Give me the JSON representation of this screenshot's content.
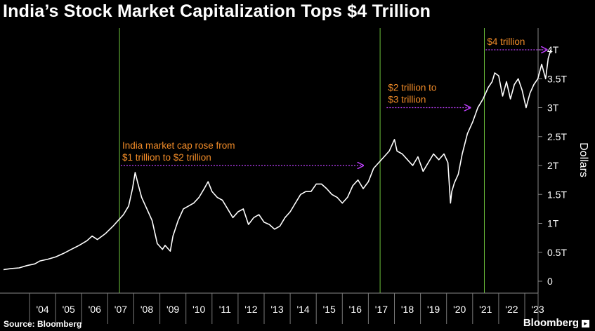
{
  "title": "India’s Stock Market Capitalization Tops $4 Trillion",
  "source": "Source: Bloomberg",
  "brand": "Bloomberg",
  "colors": {
    "background": "#000000",
    "line": "#ffffff",
    "annotation": "#f28c28",
    "arrow": "#c040ff",
    "milestone": "#6bbf3a"
  },
  "chart_data": {
    "type": "line",
    "ylabel": "Dollars",
    "ylim": [
      -0.1,
      4.15
    ],
    "xlim": [
      2003.0,
      2024.0
    ],
    "y_ticks": [
      {
        "value": 0,
        "label": "0"
      },
      {
        "value": 0.5,
        "label": "0.5T"
      },
      {
        "value": 1,
        "label": "1T"
      },
      {
        "value": 1.5,
        "label": "1.5T"
      },
      {
        "value": 2,
        "label": "2T"
      },
      {
        "value": 2.5,
        "label": "2.5T"
      },
      {
        "value": 3,
        "label": "3T"
      },
      {
        "value": 3.5,
        "label": "3.5T"
      },
      {
        "value": 4,
        "label": "4T"
      }
    ],
    "x_ticks": [
      {
        "value": 2004,
        "label": "'04"
      },
      {
        "value": 2005,
        "label": "'05"
      },
      {
        "value": 2006,
        "label": "'06"
      },
      {
        "value": 2007,
        "label": "'07"
      },
      {
        "value": 2008,
        "label": "'08"
      },
      {
        "value": 2009,
        "label": "'09"
      },
      {
        "value": 2010,
        "label": "'10"
      },
      {
        "value": 2011,
        "label": "'11"
      },
      {
        "value": 2012,
        "label": "'12"
      },
      {
        "value": 2013,
        "label": "'13"
      },
      {
        "value": 2014,
        "label": "'14"
      },
      {
        "value": 2015,
        "label": "'15"
      },
      {
        "value": 2016,
        "label": "'16"
      },
      {
        "value": 2017,
        "label": "'17"
      },
      {
        "value": 2018,
        "label": "'18"
      },
      {
        "value": 2019,
        "label": "'19"
      },
      {
        "value": 2020,
        "label": "'20"
      },
      {
        "value": 2021,
        "label": "'21"
      },
      {
        "value": 2022,
        "label": "'22"
      },
      {
        "value": 2023,
        "label": "'23"
      }
    ],
    "milestones": [
      2007.45,
      2017.45,
      2021.45
    ],
    "series": [
      {
        "name": "India market capitalization",
        "x": [
          2003.0,
          2003.3,
          2003.6,
          2003.9,
          2004.2,
          2004.4,
          2004.7,
          2005.0,
          2005.3,
          2005.6,
          2005.9,
          2006.2,
          2006.4,
          2006.6,
          2006.9,
          2007.2,
          2007.4,
          2007.6,
          2007.8,
          2007.95,
          2008.05,
          2008.15,
          2008.3,
          2008.5,
          2008.7,
          2008.9,
          2009.1,
          2009.2,
          2009.4,
          2009.5,
          2009.7,
          2009.9,
          2010.1,
          2010.3,
          2010.5,
          2010.7,
          2010.85,
          2011.0,
          2011.2,
          2011.4,
          2011.6,
          2011.8,
          2012.0,
          2012.2,
          2012.4,
          2012.6,
          2012.8,
          2013.0,
          2013.2,
          2013.4,
          2013.6,
          2013.8,
          2014.0,
          2014.2,
          2014.4,
          2014.6,
          2014.8,
          2015.0,
          2015.2,
          2015.4,
          2015.6,
          2015.8,
          2016.0,
          2016.2,
          2016.4,
          2016.6,
          2016.8,
          2017.0,
          2017.2,
          2017.4,
          2017.6,
          2017.8,
          2018.0,
          2018.1,
          2018.3,
          2018.5,
          2018.7,
          2018.9,
          2019.1,
          2019.3,
          2019.5,
          2019.7,
          2019.9,
          2020.05,
          2020.15,
          2020.2,
          2020.3,
          2020.45,
          2020.6,
          2020.8,
          2021.0,
          2021.2,
          2021.4,
          2021.6,
          2021.75,
          2021.85,
          2022.0,
          2022.15,
          2022.3,
          2022.45,
          2022.6,
          2022.75,
          2022.9,
          2023.05,
          2023.2,
          2023.35,
          2023.5,
          2023.65,
          2023.8,
          2023.9,
          2024.0
        ],
        "values": [
          0.2,
          0.22,
          0.23,
          0.27,
          0.3,
          0.35,
          0.38,
          0.42,
          0.48,
          0.55,
          0.62,
          0.7,
          0.78,
          0.72,
          0.82,
          0.95,
          1.05,
          1.15,
          1.3,
          1.6,
          1.88,
          1.7,
          1.45,
          1.25,
          1.05,
          0.65,
          0.55,
          0.62,
          0.52,
          0.78,
          1.05,
          1.25,
          1.3,
          1.35,
          1.45,
          1.6,
          1.72,
          1.55,
          1.45,
          1.4,
          1.25,
          1.1,
          1.2,
          1.25,
          0.98,
          1.1,
          1.15,
          1.02,
          0.98,
          0.9,
          0.95,
          1.1,
          1.2,
          1.35,
          1.5,
          1.55,
          1.55,
          1.68,
          1.68,
          1.6,
          1.5,
          1.45,
          1.35,
          1.45,
          1.65,
          1.75,
          1.6,
          1.72,
          1.95,
          2.05,
          2.15,
          2.25,
          2.45,
          2.25,
          2.2,
          2.1,
          2.0,
          2.15,
          1.9,
          2.05,
          2.2,
          2.1,
          2.2,
          2.05,
          1.35,
          1.55,
          1.7,
          1.85,
          2.2,
          2.55,
          2.75,
          3.0,
          3.15,
          3.35,
          3.45,
          3.6,
          3.55,
          3.2,
          3.45,
          3.15,
          3.4,
          3.5,
          3.3,
          3.0,
          3.25,
          3.4,
          3.5,
          3.75,
          3.5,
          3.85,
          4.0
        ]
      }
    ],
    "annotations": [
      {
        "lines": [
          "India market cap rose from",
          "$1 trillion to $2 trillion"
        ],
        "arrow_from": [
          2007.5,
          2.0
        ],
        "arrow_to": [
          2016.8,
          2.0
        ]
      },
      {
        "lines": [
          "$2 trillion to",
          "$3 trillion"
        ],
        "arrow_from": [
          2017.7,
          3.0
        ],
        "arrow_to": [
          2020.9,
          3.0
        ]
      },
      {
        "lines": [
          "$4 trillion"
        ],
        "arrow_from": [
          2021.5,
          4.0
        ],
        "arrow_to": [
          2023.85,
          4.0
        ]
      }
    ]
  }
}
